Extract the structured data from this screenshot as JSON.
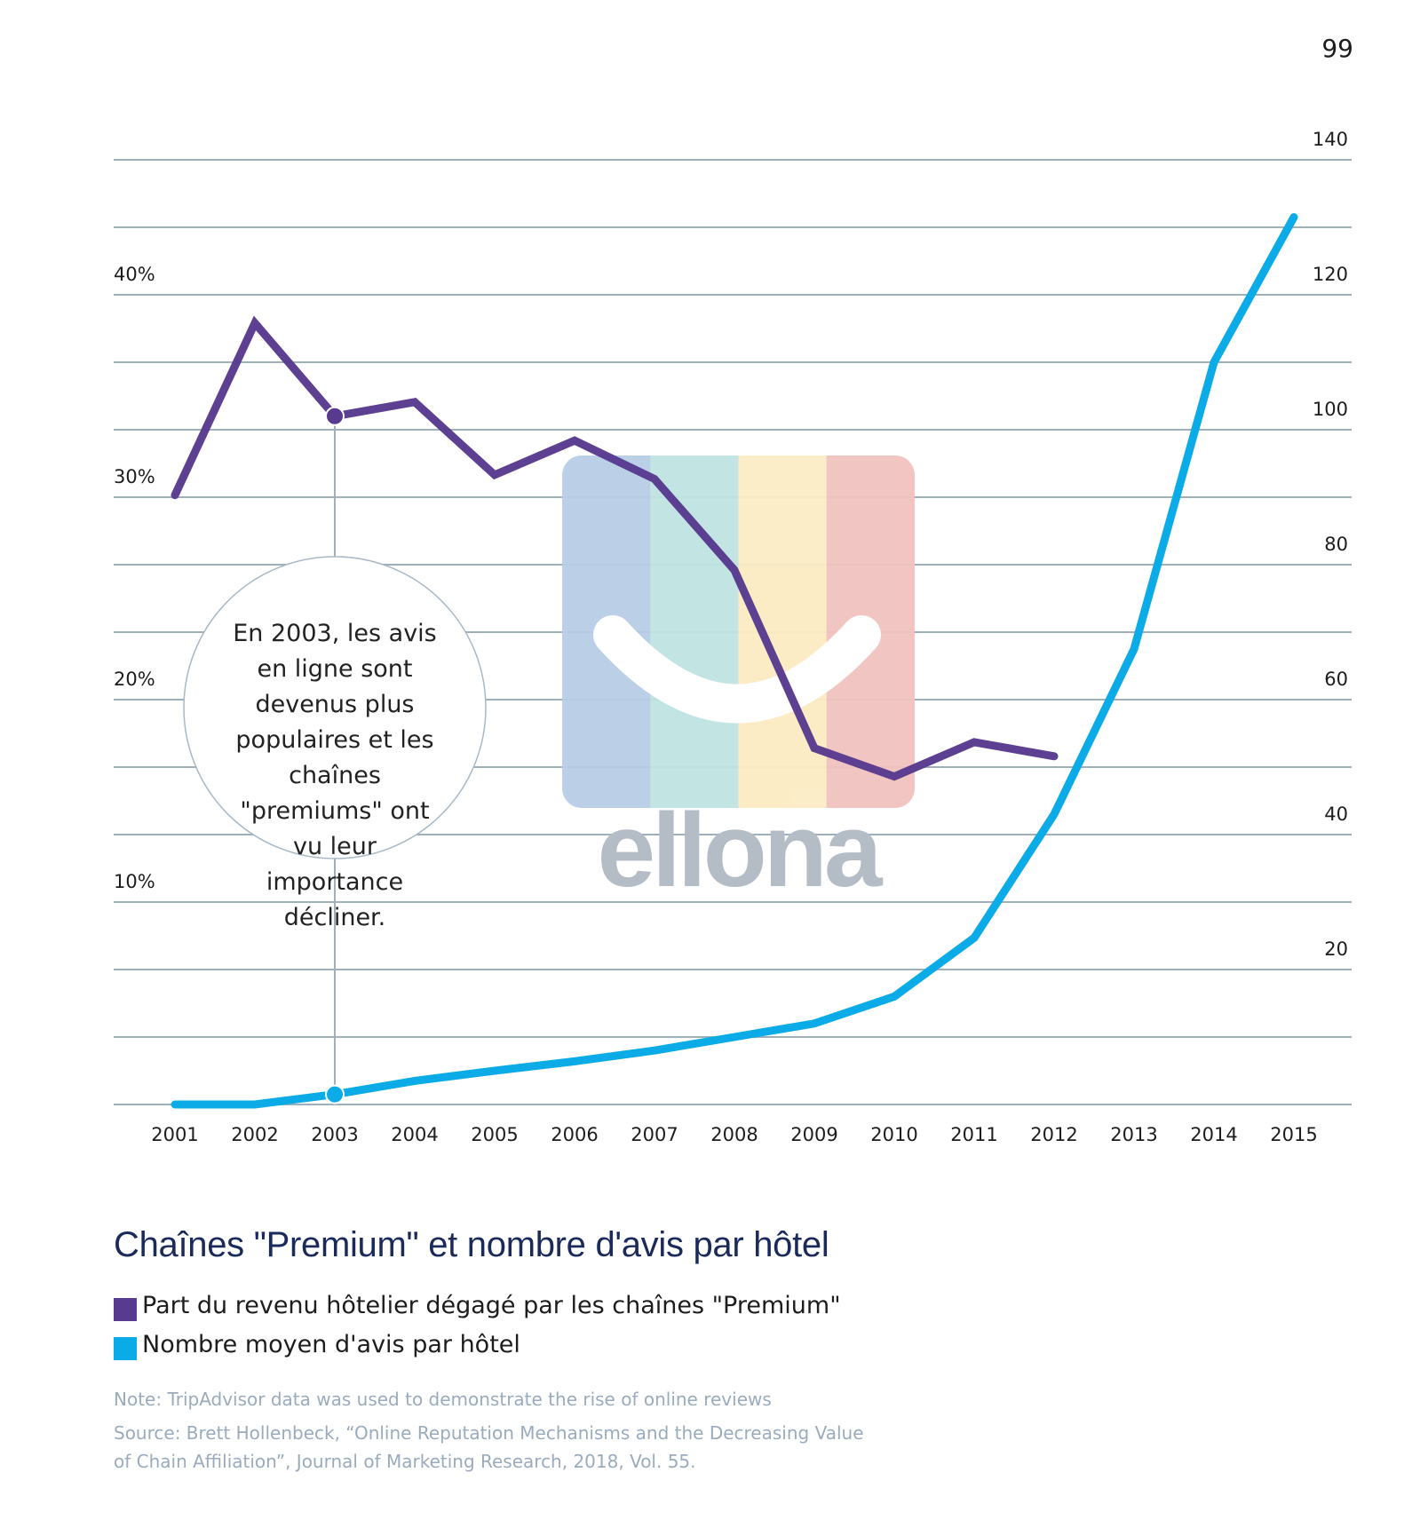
{
  "page_number": "99",
  "watermark": {
    "text": "ellona",
    "stripe_colors": [
      "#b8cde6",
      "#bfe3e2",
      "#fbecc4",
      "#f1c2bf"
    ],
    "text_color": "#b4bcc6",
    "icon": "smile-logo-icon"
  },
  "chart_data": {
    "type": "line",
    "title": "Chaînes \"Premium\" et nombre d'avis par hôtel",
    "xlabel": "",
    "x": [
      2001,
      2002,
      2003,
      2004,
      2005,
      2006,
      2007,
      2008,
      2009,
      2010,
      2011,
      2012,
      2013,
      2014,
      2015
    ],
    "x_tick_labels": [
      "2001",
      "2002",
      "2003",
      "2004",
      "2005",
      "2006",
      "2007",
      "2008",
      "2009",
      "2010",
      "2011",
      "2012",
      "2013",
      "2014",
      "2015"
    ],
    "grid": true,
    "legend_position": "bottom-left",
    "left_axis": {
      "label": "",
      "ylim": [
        0,
        45
      ],
      "ticks": [
        10,
        20,
        30,
        40
      ],
      "tick_labels": [
        "10%",
        "20%",
        "30%",
        "40%"
      ]
    },
    "right_axis": {
      "label": "",
      "ylim": [
        0,
        140
      ],
      "ticks": [
        20,
        40,
        60,
        80,
        100,
        120,
        140
      ],
      "tick_labels": [
        "20",
        "40",
        "60",
        "80",
        "100",
        "120",
        "140"
      ]
    },
    "series": [
      {
        "name": "Part du revenu hôtelier dégagé par les chaînes \"Premium\"",
        "axis": "left",
        "color": "#583a8e",
        "unit": "%",
        "values": [
          30.1,
          38.6,
          34.0,
          34.7,
          31.1,
          32.8,
          30.9,
          26.4,
          17.6,
          16.2,
          17.9,
          17.2,
          null,
          null,
          null
        ]
      },
      {
        "name": "Nombre moyen d'avis par hôtel",
        "axis": "right",
        "color": "#0aabe6",
        "values": [
          0,
          0,
          1.5,
          3.5,
          5,
          6.4,
          8,
          10,
          12,
          16,
          24.7,
          43,
          67.5,
          110,
          131.5
        ]
      }
    ],
    "annotation": {
      "year": 2003,
      "lines": [
        "En 2003, les avis",
        "en ligne sont",
        "devenus plus",
        "populaires et les",
        "chaînes",
        "\"premiums\" ont",
        "vu leur",
        "importance",
        "décliner."
      ]
    },
    "gridline_color": "#9fb0bd"
  },
  "legend": {
    "items": [
      {
        "label": "Part du revenu hôtelier dégagé par les chaînes \"Premium\"",
        "color": "#583a8e"
      },
      {
        "label": "Nombre moyen d'avis par hôtel",
        "color": "#0aabe6"
      }
    ]
  },
  "notes": {
    "note": "Note: TripAdvisor data was used to demonstrate the rise of online reviews",
    "source_line1": "Source: Brett Hollenbeck, “Online Reputation Mechanisms and the Decreasing Value",
    "source_line2": "of Chain Affiliation”, Journal of Marketing Research, 2018, Vol. 55."
  }
}
